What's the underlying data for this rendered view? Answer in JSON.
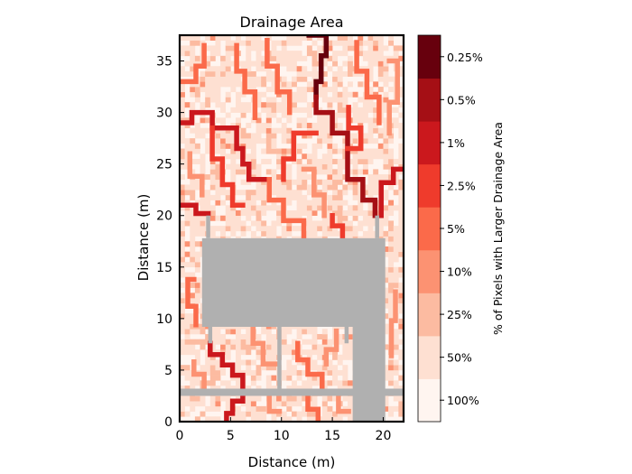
{
  "chart_data": {
    "type": "heatmap",
    "title": "Drainage Area",
    "xlabel": "Distance (m)",
    "ylabel": "Distance (m)",
    "xlim": [
      0,
      22
    ],
    "ylim": [
      0,
      37.5
    ],
    "xticks": [
      0,
      5,
      10,
      15,
      20
    ],
    "yticks": [
      0,
      5,
      10,
      15,
      20,
      25,
      30,
      35
    ],
    "grid": false,
    "colorbar": {
      "label": "% of Pixels with Larger Drainage Area",
      "levels": [
        "100%",
        "50%",
        "25%",
        "10%",
        "5%",
        "2.5%",
        "1%",
        "0.5%",
        "0.25%"
      ],
      "colors": [
        "#fff5f0",
        "#fee0d2",
        "#fcbba1",
        "#fc9272",
        "#fb6a4a",
        "#ef3b2c",
        "#cb181d",
        "#a50f15",
        "#67000d"
      ]
    },
    "masked_color": "#b0b0b0",
    "masked_regions_data_units": [
      {
        "x": [
          2.2,
          20.2
        ],
        "y": [
          9.2,
          17.8
        ]
      },
      {
        "x": [
          17.0,
          20.2
        ],
        "y": [
          0,
          9.2
        ]
      },
      {
        "x": [
          0,
          22
        ],
        "y": [
          2.5,
          3.2
        ]
      },
      {
        "x": [
          2.6,
          3.0
        ],
        "y": [
          17.8,
          20.0
        ]
      },
      {
        "x": [
          9.6,
          10.0
        ],
        "y": [
          3.2,
          9.2
        ]
      },
      {
        "x": [
          2.8,
          3.2
        ],
        "y": [
          7.6,
          9.2
        ]
      },
      {
        "x": [
          16.2,
          16.6
        ],
        "y": [
          7.6,
          9.2
        ]
      },
      {
        "x": [
          19.2,
          19.6
        ],
        "y": [
          17.8,
          20.0
        ]
      }
    ],
    "channels": [
      {
        "level": 8,
        "path": [
          [
            12.7,
            37.5
          ],
          [
            14.4,
            37.5
          ],
          [
            14.4,
            35.5
          ],
          [
            13.9,
            35.5
          ],
          [
            13.9,
            33.0
          ],
          [
            13.4,
            33.0
          ],
          [
            13.4,
            31.5
          ]
        ]
      },
      {
        "level": 7,
        "path": [
          [
            13.4,
            31.5
          ],
          [
            13.4,
            30.0
          ],
          [
            15.0,
            30.0
          ],
          [
            15.0,
            28.0
          ],
          [
            16.5,
            28.0
          ],
          [
            16.5,
            23.5
          ],
          [
            18.0,
            23.5
          ],
          [
            18.0,
            21.5
          ],
          [
            19.2,
            21.5
          ],
          [
            19.2,
            20.0
          ]
        ]
      },
      {
        "level": 6,
        "path": [
          [
            0.2,
            29.0
          ],
          [
            1.2,
            29.0
          ],
          [
            1.2,
            30.0
          ],
          [
            3.2,
            30.0
          ],
          [
            3.2,
            28.5
          ],
          [
            5.6,
            28.5
          ],
          [
            5.6,
            26.5
          ],
          [
            6.2,
            26.5
          ],
          [
            6.2,
            25.0
          ],
          [
            6.8,
            25.0
          ],
          [
            6.8,
            23.5
          ],
          [
            8.8,
            23.5
          ]
        ]
      },
      {
        "level": 6,
        "path": [
          [
            21.8,
            24.5
          ],
          [
            21.0,
            24.5
          ],
          [
            21.0,
            23.2
          ],
          [
            19.8,
            23.2
          ],
          [
            19.8,
            20.0
          ]
        ]
      },
      {
        "level": 6,
        "path": [
          [
            0.2,
            21.0
          ],
          [
            1.6,
            21.0
          ],
          [
            1.6,
            20.2
          ],
          [
            2.8,
            20.2
          ]
        ]
      },
      {
        "level": 6,
        "path": [
          [
            3.0,
            7.6
          ],
          [
            3.0,
            6.5
          ],
          [
            4.2,
            6.5
          ],
          [
            4.2,
            5.5
          ],
          [
            5.2,
            5.5
          ],
          [
            5.2,
            4.5
          ],
          [
            6.2,
            4.5
          ],
          [
            6.2,
            3.2
          ]
        ]
      },
      {
        "level": 6,
        "path": [
          [
            6.2,
            2.5
          ],
          [
            6.2,
            2.0
          ],
          [
            5.2,
            2.0
          ],
          [
            5.2,
            0.8
          ],
          [
            4.6,
            0.8
          ],
          [
            4.6,
            0.2
          ]
        ]
      },
      {
        "level": 5,
        "path": [
          [
            3.2,
            28.5
          ],
          [
            3.2,
            25.5
          ],
          [
            4.2,
            25.5
          ],
          [
            4.2,
            23.0
          ],
          [
            5.2,
            23.0
          ],
          [
            5.2,
            21.0
          ],
          [
            6.2,
            21.0
          ]
        ]
      },
      {
        "level": 5,
        "path": [
          [
            16.5,
            26.5
          ],
          [
            17.8,
            26.5
          ],
          [
            17.8,
            28.5
          ],
          [
            16.6,
            28.5
          ],
          [
            16.6,
            30.5
          ]
        ]
      },
      {
        "level": 5,
        "path": [
          [
            13.4,
            28.0
          ],
          [
            11.2,
            28.0
          ],
          [
            11.2,
            25.5
          ],
          [
            10.2,
            25.5
          ],
          [
            10.2,
            23.5
          ]
        ]
      },
      {
        "level": 5,
        "path": [
          [
            15.0,
            20.0
          ],
          [
            15.0,
            19.0
          ],
          [
            16.0,
            19.0
          ],
          [
            16.0,
            17.8
          ]
        ]
      },
      {
        "level": 4,
        "path": [
          [
            0.2,
            33.0
          ],
          [
            1.6,
            33.0
          ],
          [
            1.6,
            34.5
          ],
          [
            2.4,
            34.5
          ],
          [
            2.4,
            36.5
          ]
        ]
      },
      {
        "level": 4,
        "path": [
          [
            5.6,
            36.5
          ],
          [
            5.6,
            34.0
          ],
          [
            6.4,
            34.0
          ],
          [
            6.4,
            32.0
          ],
          [
            7.4,
            32.0
          ],
          [
            7.4,
            29.5
          ]
        ]
      },
      {
        "level": 4,
        "path": [
          [
            8.6,
            37.0
          ],
          [
            8.6,
            34.5
          ],
          [
            9.6,
            34.5
          ],
          [
            9.6,
            32.0
          ],
          [
            10.8,
            32.0
          ],
          [
            10.8,
            30.0
          ]
        ]
      },
      {
        "level": 4,
        "path": [
          [
            17.4,
            36.8
          ],
          [
            17.4,
            34.0
          ],
          [
            18.4,
            34.0
          ],
          [
            18.4,
            31.5
          ],
          [
            19.6,
            31.5
          ],
          [
            19.6,
            29.0
          ]
        ]
      },
      {
        "level": 4,
        "path": [
          [
            8.8,
            23.5
          ],
          [
            8.8,
            21.5
          ],
          [
            10.2,
            21.5
          ],
          [
            10.2,
            19.5
          ],
          [
            12.2,
            19.5
          ],
          [
            12.2,
            17.8
          ]
        ]
      },
      {
        "level": 4,
        "path": [
          [
            11.6,
            7.6
          ],
          [
            11.6,
            6.0
          ],
          [
            12.6,
            6.0
          ],
          [
            12.6,
            4.6
          ],
          [
            14.0,
            4.6
          ],
          [
            14.0,
            3.2
          ]
        ]
      },
      {
        "level": 4,
        "path": [
          [
            12.6,
            2.5
          ],
          [
            12.6,
            1.2
          ],
          [
            13.6,
            1.2
          ],
          [
            13.6,
            0.2
          ]
        ]
      },
      {
        "level": 4,
        "path": [
          [
            1.4,
            13.8
          ],
          [
            0.8,
            13.8
          ],
          [
            0.8,
            11.2
          ],
          [
            1.6,
            11.2
          ],
          [
            1.6,
            9.4
          ]
        ]
      },
      {
        "level": 3,
        "path": [
          [
            20.6,
            35.0
          ],
          [
            21.4,
            35.0
          ],
          [
            21.4,
            31.0
          ],
          [
            20.6,
            31.0
          ],
          [
            20.6,
            28.0
          ]
        ]
      },
      {
        "level": 3,
        "path": [
          [
            1.0,
            26.0
          ],
          [
            1.0,
            23.8
          ],
          [
            2.2,
            23.8
          ],
          [
            2.2,
            22.0
          ]
        ]
      },
      {
        "level": 3,
        "path": [
          [
            12.2,
            24.5
          ],
          [
            13.2,
            24.5
          ],
          [
            13.2,
            22.0
          ],
          [
            14.2,
            22.0
          ],
          [
            14.2,
            20.0
          ]
        ]
      },
      {
        "level": 3,
        "path": [
          [
            7.2,
            9.0
          ],
          [
            7.2,
            7.6
          ],
          [
            8.2,
            7.6
          ],
          [
            8.2,
            5.6
          ],
          [
            9.6,
            5.6
          ]
        ]
      },
      {
        "level": 3,
        "path": [
          [
            15.4,
            8.8
          ],
          [
            15.4,
            7.0
          ],
          [
            14.4,
            7.0
          ],
          [
            14.4,
            5.6
          ]
        ]
      },
      {
        "level": 3,
        "path": [
          [
            1.4,
            5.8
          ],
          [
            1.4,
            4.6
          ],
          [
            2.4,
            4.6
          ],
          [
            2.4,
            3.2
          ]
        ]
      },
      {
        "level": 3,
        "path": [
          [
            21.2,
            12.6
          ],
          [
            21.2,
            9.8
          ],
          [
            20.8,
            9.8
          ],
          [
            20.8,
            6.4
          ]
        ]
      },
      {
        "level": 3,
        "path": [
          [
            8.8,
            2.5
          ],
          [
            8.8,
            1.0
          ],
          [
            9.8,
            1.0
          ]
        ]
      },
      {
        "level": 3,
        "path": [
          [
            15.6,
            2.5
          ],
          [
            15.6,
            1.0
          ],
          [
            16.6,
            1.0
          ]
        ]
      }
    ]
  }
}
